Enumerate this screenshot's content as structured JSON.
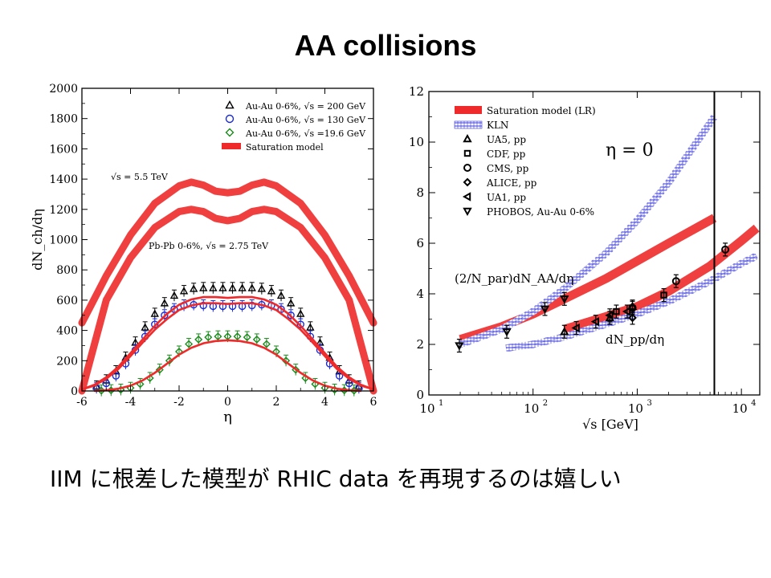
{
  "slide": {
    "title": "AA collisions",
    "caption": "IIM に根差した模型が RHIC data を再現するのは嬉しい"
  },
  "colors": {
    "saturation": "#ee2a2a",
    "kln": "#3b3bdb",
    "au200": "#000000",
    "au130": "#1a2bd6",
    "au19": "#1a8a1a"
  },
  "chart_data": [
    {
      "type": "line",
      "ylabel": "dN_ch/dη",
      "xlabel": "η",
      "xlim": [
        -6,
        6
      ],
      "ylim": [
        0,
        2000
      ],
      "x_ticks": [
        "-6",
        "-4",
        "-2",
        "0",
        "2",
        "4",
        "6"
      ],
      "y_ticks": [
        "0",
        "200",
        "400",
        "600",
        "800",
        "1000",
        "1200",
        "1400",
        "1600",
        "1800",
        "2000"
      ],
      "legend_position": "top-right",
      "legend": [
        {
          "label": "Au-Au 0-6%, √s = 200 GeV",
          "marker": "triangle",
          "color": "#000000"
        },
        {
          "label": "Au-Au 0-6%, √s = 130 GeV",
          "marker": "circle",
          "color": "#1a2bd6"
        },
        {
          "label": "Au-Au 0-6%, √s =19.6 GeV",
          "marker": "diamond",
          "color": "#1a8a1a"
        },
        {
          "label": "Saturation model",
          "marker": "band",
          "color": "#ee2a2a"
        }
      ],
      "annotations": [
        "√s = 5.5 TeV",
        "Pb-Pb 0-6%, √s = 2.75 TeV"
      ],
      "series": [
        {
          "name": "√s = 5.5 TeV",
          "style": "band",
          "color": "#ee2a2a",
          "x": [
            -6,
            -5,
            -4,
            -3,
            -2,
            -1.5,
            -1,
            -0.5,
            0,
            0.5,
            1,
            1.5,
            2,
            3,
            4,
            5,
            6
          ],
          "y": [
            450,
            760,
            1030,
            1240,
            1355,
            1380,
            1360,
            1320,
            1310,
            1320,
            1360,
            1380,
            1355,
            1240,
            1030,
            760,
            450
          ]
        },
        {
          "name": "Pb-Pb 0-6%, √s = 2.75 TeV",
          "style": "band",
          "color": "#ee2a2a",
          "x": [
            -6,
            -5,
            -4,
            -3,
            -2,
            -1.5,
            -1,
            -0.5,
            0,
            0.5,
            1,
            1.5,
            2,
            3,
            4,
            5,
            6
          ],
          "y": [
            0,
            600,
            880,
            1080,
            1185,
            1200,
            1185,
            1140,
            1125,
            1140,
            1185,
            1200,
            1185,
            1080,
            880,
            600,
            0
          ]
        },
        {
          "name": "Au-Au 0-6%, √s = 200 GeV",
          "style": "markers",
          "marker": "triangle",
          "color": "#000000",
          "x": [
            -5.4,
            -5,
            -4.6,
            -4.2,
            -3.8,
            -3.4,
            -3,
            -2.6,
            -2.2,
            -1.8,
            -1.4,
            -1,
            -0.6,
            -0.2,
            0.2,
            0.6,
            1,
            1.4,
            1.8,
            2.2,
            2.6,
            3,
            3.4,
            3.8,
            4.2,
            4.6,
            5,
            5.4
          ],
          "y": [
            30,
            70,
            130,
            220,
            320,
            420,
            510,
            580,
            630,
            660,
            675,
            680,
            680,
            680,
            680,
            680,
            680,
            675,
            660,
            630,
            580,
            510,
            420,
            320,
            220,
            130,
            70,
            30
          ]
        },
        {
          "name": "Au-Au 0-6%, √s = 130 GeV",
          "style": "markers",
          "marker": "circle",
          "color": "#1a2bd6",
          "x": [
            -5.4,
            -5,
            -4.6,
            -4.2,
            -3.8,
            -3.4,
            -3,
            -2.6,
            -2.2,
            -1.8,
            -1.4,
            -1,
            -0.6,
            -0.2,
            0.2,
            0.6,
            1,
            1.4,
            1.8,
            2.2,
            2.6,
            3,
            3.4,
            3.8,
            4.2,
            4.6,
            5,
            5.4
          ],
          "y": [
            20,
            50,
            100,
            180,
            270,
            360,
            440,
            500,
            540,
            565,
            570,
            565,
            560,
            560,
            560,
            560,
            565,
            570,
            565,
            540,
            500,
            440,
            360,
            270,
            180,
            100,
            50,
            20
          ]
        },
        {
          "name": "Au-Au 0-6%, √s =19.6 GeV",
          "style": "markers",
          "marker": "diamond",
          "color": "#1a8a1a",
          "x": [
            -5.2,
            -4.8,
            -4.4,
            -4,
            -3.6,
            -3.2,
            -2.8,
            -2.4,
            -2,
            -1.6,
            -1.2,
            -0.8,
            -0.4,
            0,
            0.4,
            0.8,
            1.2,
            1.6,
            2,
            2.4,
            2.8,
            3.2,
            3.6,
            4,
            4.4,
            4.8,
            5.2
          ],
          "y": [
            2,
            4,
            8,
            20,
            45,
            85,
            140,
            200,
            260,
            310,
            340,
            355,
            360,
            360,
            360,
            355,
            340,
            310,
            260,
            200,
            140,
            85,
            45,
            20,
            8,
            4,
            2
          ]
        },
        {
          "name": "Saturation model",
          "style": "line",
          "color": "#ee2a2a",
          "x": [
            -6,
            -5.5,
            -5,
            -4.5,
            -4,
            -3.5,
            -3,
            -2.5,
            -2,
            -1.5,
            -1,
            -0.5,
            0,
            0.5,
            1,
            1.5,
            2,
            2.5,
            3,
            3.5,
            4,
            4.5,
            5,
            5.5,
            6
          ],
          "y": [
            10,
            40,
            90,
            160,
            250,
            340,
            430,
            510,
            570,
            605,
            620,
            620,
            615,
            620,
            620,
            605,
            570,
            510,
            430,
            340,
            250,
            160,
            90,
            40,
            10
          ]
        },
        {
          "name": "Saturation model",
          "style": "line",
          "color": "#ee2a2a",
          "x": [
            -6,
            -5.5,
            -5,
            -4.5,
            -4,
            -3.5,
            -3,
            -2.5,
            -2,
            -1.5,
            -1,
            -0.5,
            0,
            0.5,
            1,
            1.5,
            2,
            2.5,
            3,
            3.5,
            4,
            4.5,
            5,
            5.5,
            6
          ],
          "y": [
            10,
            35,
            80,
            145,
            230,
            320,
            405,
            475,
            535,
            565,
            580,
            580,
            575,
            580,
            580,
            565,
            535,
            475,
            405,
            320,
            230,
            145,
            80,
            35,
            10
          ]
        },
        {
          "name": "Saturation model",
          "style": "line",
          "color": "#ee2a2a",
          "x": [
            -5.5,
            -5,
            -4.5,
            -4,
            -3.5,
            -3,
            -2.5,
            -2,
            -1.5,
            -1,
            -0.5,
            0,
            0.5,
            1,
            1.5,
            2,
            2.5,
            3,
            3.5,
            4,
            4.5,
            5,
            5.5
          ],
          "y": [
            0,
            5,
            15,
            35,
            70,
            120,
            180,
            240,
            285,
            315,
            330,
            335,
            330,
            315,
            285,
            240,
            180,
            120,
            70,
            35,
            15,
            5,
            0
          ]
        }
      ]
    },
    {
      "type": "line",
      "xlabel": "√s [GeV]",
      "xscale": "log",
      "xlim": [
        10,
        15000
      ],
      "ylim": [
        0,
        12
      ],
      "x_ticks": [
        "10",
        "10",
        "10",
        "10"
      ],
      "x_tick_exponents": [
        "1",
        "2",
        "3",
        "4"
      ],
      "y_ticks": [
        "0",
        "2",
        "4",
        "6",
        "8",
        "10",
        "12"
      ],
      "legend_position": "top-left",
      "legend": [
        {
          "label": "Saturation model (LR)",
          "marker": "band",
          "color": "#ee2a2a"
        },
        {
          "label": "KLN",
          "marker": "hatched-band",
          "color": "#3b3bdb"
        },
        {
          "label": "UA5, pp",
          "marker": "triangle"
        },
        {
          "label": "CDF, pp",
          "marker": "square"
        },
        {
          "label": "CMS, pp",
          "marker": "circle"
        },
        {
          "label": "ALICE, pp",
          "marker": "diamond"
        },
        {
          "label": "UA1, pp",
          "marker": "triangle-left"
        },
        {
          "label": "PHOBOS, Au-Au 0-6%",
          "marker": "triangle-down"
        }
      ],
      "annotations": [
        "η = 0",
        "(2/N_par)dN_AA/dη",
        "dN_pp/dη"
      ],
      "vertical_line_x": 5500,
      "series": [
        {
          "name": "Saturation model (LR) AA",
          "style": "band",
          "color": "#ee2a2a",
          "x": [
            20,
            50,
            100,
            200,
            500,
            1000,
            2000,
            5500
          ],
          "y": [
            2.2,
            2.7,
            3.2,
            3.8,
            4.6,
            5.3,
            6.0,
            7.0
          ]
        },
        {
          "name": "KLN AA",
          "style": "hatched-band",
          "color": "#3b3bdb",
          "x": [
            20,
            50,
            100,
            200,
            500,
            1000,
            2000,
            5500
          ],
          "y": [
            2.0,
            2.6,
            3.3,
            4.2,
            5.6,
            6.9,
            8.4,
            11.0
          ]
        },
        {
          "name": "Saturation model (LR) pp",
          "style": "band",
          "color": "#ee2a2a",
          "x": [
            200,
            500,
            1000,
            2000,
            5000,
            10000,
            14000
          ],
          "y": [
            2.6,
            3.1,
            3.5,
            4.1,
            5.1,
            6.1,
            6.6
          ]
        },
        {
          "name": "KLN pp",
          "style": "hatched-band",
          "color": "#3b3bdb",
          "x": [
            55,
            100,
            200,
            500,
            1000,
            2000,
            5000,
            10000,
            14000
          ],
          "y": [
            1.85,
            2.0,
            2.3,
            2.8,
            3.2,
            3.7,
            4.5,
            5.2,
            5.5
          ]
        },
        {
          "name": "PHOBOS, Au-Au 0-6%",
          "style": "markers",
          "marker": "triangle-down",
          "x": [
            19.6,
            56,
            130,
            200
          ],
          "y": [
            1.95,
            2.5,
            3.4,
            3.8
          ]
        },
        {
          "name": "UA5, pp",
          "style": "markers",
          "marker": "triangle",
          "x": [
            200,
            546,
            900
          ],
          "y": [
            2.5,
            3.05,
            3.5
          ]
        },
        {
          "name": "CDF, pp",
          "style": "markers",
          "marker": "square",
          "x": [
            630,
            1800
          ],
          "y": [
            3.3,
            3.95
          ]
        },
        {
          "name": "CMS, pp",
          "style": "markers",
          "marker": "circle",
          "x": [
            900,
            2360,
            7000
          ],
          "y": [
            3.45,
            4.5,
            5.75
          ]
        },
        {
          "name": "ALICE, pp",
          "style": "markers",
          "marker": "diamond",
          "x": [
            900
          ],
          "y": [
            3.05
          ]
        },
        {
          "name": "UA1, pp",
          "style": "markers",
          "marker": "triangle-left",
          "x": [
            260,
            400,
            546,
            800
          ],
          "y": [
            2.65,
            2.9,
            3.15,
            3.3
          ]
        }
      ]
    }
  ]
}
